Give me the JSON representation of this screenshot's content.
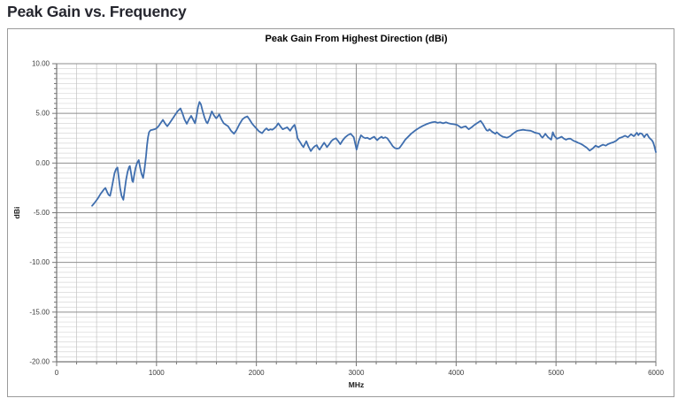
{
  "page": {
    "heading": "Peak Gain vs. Frequency"
  },
  "colors": {
    "heading_text": "#25262e",
    "line": "#3f6eae",
    "grid_minor_h": "#d7d7d7",
    "grid_minor_v": "#c2c2c2",
    "grid_major": "#8e8e8e",
    "axis": "#767676",
    "tick_text": "#3d3d3d",
    "chart_border": "#9b9b9b"
  },
  "chart_data": {
    "type": "line",
    "title": "Peak Gain From Highest Direction (dBi)",
    "xlabel": "MHz",
    "ylabel": "dBi",
    "xlim": [
      0,
      6000
    ],
    "ylim": [
      -20,
      10
    ],
    "x_major_step": 1000,
    "x_minor_step": 200,
    "y_major_step": 5,
    "y_minor_step": 0.5,
    "x_tick_labels": [
      "0",
      "1000",
      "2000",
      "3000",
      "4000",
      "5000",
      "6000"
    ],
    "y_tick_labels": [
      "10.00",
      "5.00",
      "0.00",
      "-5.00",
      "-10.00",
      "-15.00",
      "-20.00"
    ],
    "grid": true,
    "legend": "none",
    "series": [
      {
        "name": "Peak Gain From Highest Direction",
        "color": "#3f6eae",
        "points": [
          [
            355,
            -4.3
          ],
          [
            380,
            -4.0
          ],
          [
            410,
            -3.6
          ],
          [
            440,
            -3.1
          ],
          [
            470,
            -2.7
          ],
          [
            488,
            -2.5
          ],
          [
            505,
            -2.9
          ],
          [
            520,
            -3.2
          ],
          [
            535,
            -3.3
          ],
          [
            550,
            -2.6
          ],
          [
            565,
            -1.8
          ],
          [
            580,
            -1.0
          ],
          [
            595,
            -0.6
          ],
          [
            609,
            -0.45
          ],
          [
            620,
            -1.3
          ],
          [
            635,
            -2.5
          ],
          [
            650,
            -3.3
          ],
          [
            668,
            -3.7
          ],
          [
            680,
            -2.8
          ],
          [
            695,
            -1.7
          ],
          [
            710,
            -0.9
          ],
          [
            725,
            -0.4
          ],
          [
            733,
            -0.3
          ],
          [
            745,
            -1.0
          ],
          [
            757,
            -1.8
          ],
          [
            765,
            -1.9
          ],
          [
            775,
            -1.3
          ],
          [
            790,
            -0.5
          ],
          [
            805,
            0.0
          ],
          [
            822,
            0.3
          ],
          [
            835,
            -0.4
          ],
          [
            850,
            -1.1
          ],
          [
            866,
            -1.5
          ],
          [
            880,
            -0.6
          ],
          [
            895,
            0.7
          ],
          [
            905,
            1.8
          ],
          [
            915,
            2.6
          ],
          [
            925,
            3.1
          ],
          [
            940,
            3.3
          ],
          [
            960,
            3.35
          ],
          [
            980,
            3.4
          ],
          [
            1000,
            3.5
          ],
          [
            1020,
            3.7
          ],
          [
            1040,
            4.0
          ],
          [
            1064,
            4.35
          ],
          [
            1085,
            4.0
          ],
          [
            1108,
            3.7
          ],
          [
            1130,
            4.0
          ],
          [
            1150,
            4.3
          ],
          [
            1170,
            4.6
          ],
          [
            1190,
            4.9
          ],
          [
            1210,
            5.2
          ],
          [
            1240,
            5.5
          ],
          [
            1260,
            5.0
          ],
          [
            1280,
            4.4
          ],
          [
            1303,
            3.95
          ],
          [
            1325,
            4.4
          ],
          [
            1347,
            4.75
          ],
          [
            1365,
            4.4
          ],
          [
            1385,
            4.0
          ],
          [
            1400,
            4.7
          ],
          [
            1415,
            5.6
          ],
          [
            1430,
            6.15
          ],
          [
            1445,
            5.9
          ],
          [
            1460,
            5.3
          ],
          [
            1480,
            4.6
          ],
          [
            1500,
            4.1
          ],
          [
            1510,
            4.0
          ],
          [
            1530,
            4.5
          ],
          [
            1554,
            5.2
          ],
          [
            1575,
            4.8
          ],
          [
            1598,
            4.5
          ],
          [
            1615,
            4.7
          ],
          [
            1628,
            4.9
          ],
          [
            1650,
            4.4
          ],
          [
            1673,
            4.0
          ],
          [
            1695,
            3.85
          ],
          [
            1717,
            3.7
          ],
          [
            1746,
            3.25
          ],
          [
            1776,
            2.95
          ],
          [
            1800,
            3.3
          ],
          [
            1830,
            3.9
          ],
          [
            1860,
            4.4
          ],
          [
            1885,
            4.6
          ],
          [
            1909,
            4.7
          ],
          [
            1930,
            4.4
          ],
          [
            1955,
            4.0
          ],
          [
            1980,
            3.7
          ],
          [
            1998,
            3.5
          ],
          [
            2025,
            3.2
          ],
          [
            2057,
            3.0
          ],
          [
            2080,
            3.3
          ],
          [
            2101,
            3.5
          ],
          [
            2120,
            3.3
          ],
          [
            2140,
            3.4
          ],
          [
            2160,
            3.35
          ],
          [
            2180,
            3.5
          ],
          [
            2200,
            3.7
          ],
          [
            2219,
            4.0
          ],
          [
            2240,
            3.7
          ],
          [
            2264,
            3.4
          ],
          [
            2285,
            3.5
          ],
          [
            2308,
            3.6
          ],
          [
            2325,
            3.4
          ],
          [
            2338,
            3.25
          ],
          [
            2360,
            3.6
          ],
          [
            2382,
            3.85
          ],
          [
            2400,
            3.2
          ],
          [
            2412,
            2.5
          ],
          [
            2441,
            2.05
          ],
          [
            2455,
            1.8
          ],
          [
            2471,
            1.6
          ],
          [
            2485,
            1.9
          ],
          [
            2500,
            2.2
          ],
          [
            2520,
            1.7
          ],
          [
            2545,
            1.2
          ],
          [
            2565,
            1.5
          ],
          [
            2585,
            1.7
          ],
          [
            2604,
            1.8
          ],
          [
            2620,
            1.5
          ],
          [
            2633,
            1.35
          ],
          [
            2655,
            1.7
          ],
          [
            2678,
            2.05
          ],
          [
            2695,
            1.8
          ],
          [
            2707,
            1.6
          ],
          [
            2730,
            1.9
          ],
          [
            2750,
            2.2
          ],
          [
            2766,
            2.35
          ],
          [
            2796,
            2.5
          ],
          [
            2820,
            2.2
          ],
          [
            2840,
            1.9
          ],
          [
            2865,
            2.3
          ],
          [
            2890,
            2.6
          ],
          [
            2914,
            2.8
          ],
          [
            2944,
            2.95
          ],
          [
            2975,
            2.6
          ],
          [
            3003,
            1.35
          ],
          [
            3025,
            2.2
          ],
          [
            3047,
            2.8
          ],
          [
            3070,
            2.6
          ],
          [
            3090,
            2.5
          ],
          [
            3110,
            2.55
          ],
          [
            3136,
            2.4
          ],
          [
            3160,
            2.55
          ],
          [
            3180,
            2.65
          ],
          [
            3195,
            2.45
          ],
          [
            3210,
            2.3
          ],
          [
            3230,
            2.5
          ],
          [
            3254,
            2.65
          ],
          [
            3270,
            2.5
          ],
          [
            3290,
            2.6
          ],
          [
            3310,
            2.5
          ],
          [
            3342,
            2.05
          ],
          [
            3365,
            1.7
          ],
          [
            3387,
            1.5
          ],
          [
            3410,
            1.45
          ],
          [
            3431,
            1.5
          ],
          [
            3460,
            1.9
          ],
          [
            3490,
            2.35
          ],
          [
            3520,
            2.65
          ],
          [
            3549,
            2.95
          ],
          [
            3580,
            3.2
          ],
          [
            3608,
            3.4
          ],
          [
            3640,
            3.6
          ],
          [
            3668,
            3.75
          ],
          [
            3700,
            3.9
          ],
          [
            3727,
            4.0
          ],
          [
            3760,
            4.1
          ],
          [
            3786,
            4.15
          ],
          [
            3815,
            4.05
          ],
          [
            3840,
            4.1
          ],
          [
            3870,
            4.0
          ],
          [
            3900,
            4.1
          ],
          [
            3925,
            4.0
          ],
          [
            3948,
            3.95
          ],
          [
            3980,
            3.9
          ],
          [
            4008,
            3.85
          ],
          [
            4030,
            3.7
          ],
          [
            4052,
            3.55
          ],
          [
            4075,
            3.65
          ],
          [
            4096,
            3.7
          ],
          [
            4110,
            3.55
          ],
          [
            4126,
            3.4
          ],
          [
            4155,
            3.6
          ],
          [
            4185,
            3.85
          ],
          [
            4215,
            4.05
          ],
          [
            4245,
            4.25
          ],
          [
            4270,
            3.9
          ],
          [
            4289,
            3.55
          ],
          [
            4305,
            3.3
          ],
          [
            4318,
            3.25
          ],
          [
            4333,
            3.4
          ],
          [
            4360,
            3.15
          ],
          [
            4392,
            2.95
          ],
          [
            4407,
            3.1
          ],
          [
            4435,
            2.85
          ],
          [
            4466,
            2.65
          ],
          [
            4490,
            2.6
          ],
          [
            4510,
            2.55
          ],
          [
            4540,
            2.7
          ],
          [
            4569,
            2.95
          ],
          [
            4590,
            3.1
          ],
          [
            4613,
            3.25
          ],
          [
            4640,
            3.3
          ],
          [
            4670,
            3.35
          ],
          [
            4700,
            3.3
          ],
          [
            4746,
            3.25
          ],
          [
            4770,
            3.15
          ],
          [
            4790,
            3.05
          ],
          [
            4815,
            3.0
          ],
          [
            4834,
            2.95
          ],
          [
            4850,
            2.7
          ],
          [
            4864,
            2.55
          ],
          [
            4880,
            2.75
          ],
          [
            4893,
            2.95
          ],
          [
            4920,
            2.6
          ],
          [
            4952,
            2.35
          ],
          [
            4968,
            3.1
          ],
          [
            4985,
            2.7
          ],
          [
            5011,
            2.45
          ],
          [
            5035,
            2.55
          ],
          [
            5056,
            2.65
          ],
          [
            5080,
            2.45
          ],
          [
            5100,
            2.35
          ],
          [
            5125,
            2.45
          ],
          [
            5145,
            2.45
          ],
          [
            5174,
            2.25
          ],
          [
            5200,
            2.15
          ],
          [
            5219,
            2.05
          ],
          [
            5245,
            1.95
          ],
          [
            5263,
            1.85
          ],
          [
            5285,
            1.7
          ],
          [
            5307,
            1.55
          ],
          [
            5337,
            1.25
          ],
          [
            5366,
            1.45
          ],
          [
            5396,
            1.75
          ],
          [
            5425,
            1.6
          ],
          [
            5450,
            1.75
          ],
          [
            5470,
            1.85
          ],
          [
            5499,
            1.75
          ],
          [
            5520,
            1.9
          ],
          [
            5544,
            2.0
          ],
          [
            5575,
            2.1
          ],
          [
            5603,
            2.25
          ],
          [
            5632,
            2.5
          ],
          [
            5660,
            2.6
          ],
          [
            5691,
            2.75
          ],
          [
            5720,
            2.6
          ],
          [
            5751,
            2.9
          ],
          [
            5780,
            2.7
          ],
          [
            5810,
            3.05
          ],
          [
            5825,
            2.8
          ],
          [
            5840,
            3.0
          ],
          [
            5860,
            2.95
          ],
          [
            5884,
            2.6
          ],
          [
            5900,
            2.85
          ],
          [
            5913,
            2.9
          ],
          [
            5930,
            2.6
          ],
          [
            5943,
            2.45
          ],
          [
            5960,
            2.3
          ],
          [
            5972,
            2.1
          ],
          [
            5985,
            1.7
          ],
          [
            6000,
            1.1
          ]
        ]
      }
    ]
  }
}
